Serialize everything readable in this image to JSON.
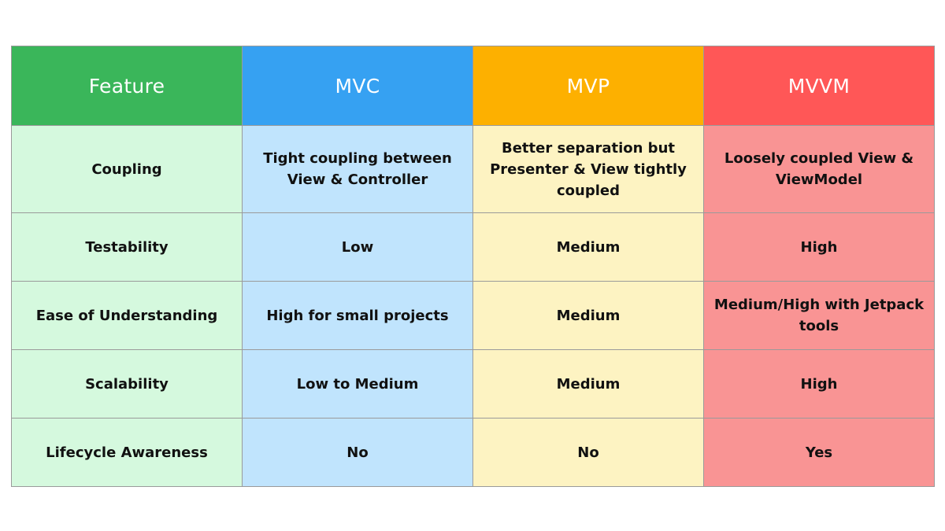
{
  "table": {
    "headers": [
      "Feature",
      "MVC",
      "MVP",
      "MVVM"
    ],
    "rows": [
      [
        "Coupling",
        "Tight coupling between View & Controller",
        "Better separation but Presenter & View tightly coupled",
        "Loosely coupled View & ViewModel"
      ],
      [
        "Testability",
        "Low",
        "Medium",
        "High"
      ],
      [
        "Ease of Understanding",
        "High for small projects",
        "Medium",
        "Medium/High with Jetpack tools"
      ],
      [
        "Scalability",
        "Low to Medium",
        "Medium",
        "High"
      ],
      [
        "Lifecycle Awareness",
        "No",
        "No",
        "Yes"
      ]
    ]
  },
  "colors": {
    "header_feature": "#3ab65a",
    "header_mvc": "#36a1f2",
    "header_mvp": "#fdb000",
    "header_mvvm": "#ff5757",
    "cell_feature": "#d5f9de",
    "cell_mvc": "#c0e4fd",
    "cell_mvp": "#fdf3c2",
    "cell_mvvm": "#f99494"
  }
}
